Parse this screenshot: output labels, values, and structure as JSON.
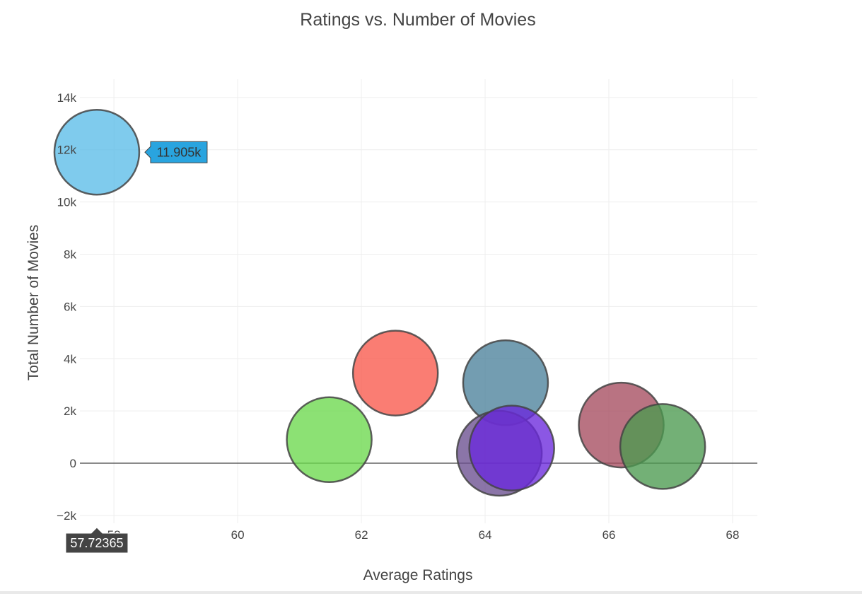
{
  "chart_data": {
    "type": "scatter",
    "title": "Ratings vs. Number of Movies",
    "xlabel": "Average Ratings",
    "ylabel": "Total Number of Movies",
    "xlim": [
      57.45,
      68.4
    ],
    "ylim": [
      -2300,
      14700
    ],
    "x_ticks": [
      58,
      60,
      62,
      64,
      66,
      68
    ],
    "x_tick_labels": [
      "58",
      "60",
      "62",
      "64",
      "66",
      "68"
    ],
    "y_ticks": [
      -2000,
      0,
      2000,
      4000,
      6000,
      8000,
      10000,
      12000,
      14000
    ],
    "y_tick_labels": [
      "−2k",
      "0",
      "2k",
      "4k",
      "6k",
      "8k",
      "10k",
      "12k",
      "14k"
    ],
    "grid": true,
    "marker_size": "large uniform bubbles",
    "points": [
      {
        "x": 57.72365,
        "y": 11905,
        "color": "#5bbde8"
      },
      {
        "x": 62.55,
        "y": 3450,
        "color": "#f9584c"
      },
      {
        "x": 61.48,
        "y": 900,
        "color": "#6cd84d"
      },
      {
        "x": 64.33,
        "y": 3080,
        "color": "#4c819b"
      },
      {
        "x": 64.23,
        "y": 380,
        "color": "#6a4e8f"
      },
      {
        "x": 64.43,
        "y": 580,
        "color": "#6a28dd"
      },
      {
        "x": 66.2,
        "y": 1460,
        "color": "#a54b5f"
      },
      {
        "x": 66.87,
        "y": 640,
        "color": "#4c9a50"
      }
    ],
    "hover": {
      "x_label": "57.72365",
      "y_label": "11.905k",
      "y_label_color": "#29a4df",
      "x_label_color": "#444444"
    }
  }
}
